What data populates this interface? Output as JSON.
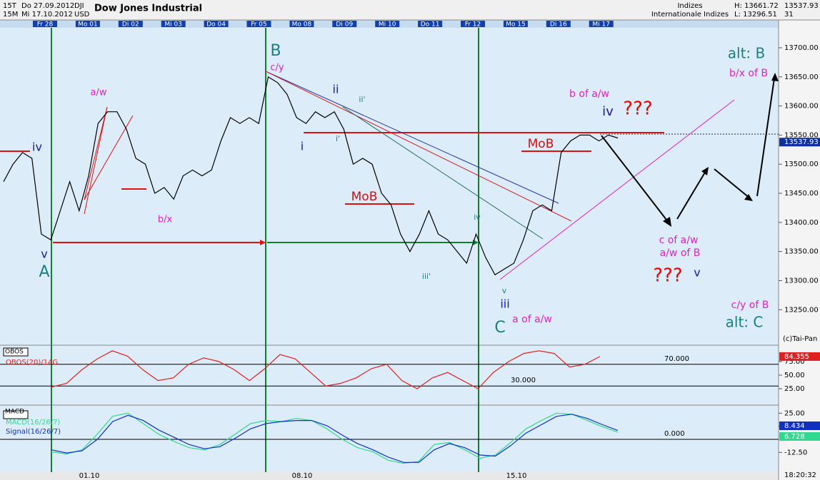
{
  "header": {
    "period": "15T",
    "interval": "15M",
    "from": "Do 27.09.2012",
    "to": "Mi 17.10.2012",
    "symbol": "DJI",
    "currency": "USD",
    "name": "Dow Jones Industrial",
    "category": "Indizes",
    "group": "Internationale Indizes",
    "high": "H: 13661.72",
    "low": "L: 13296.51",
    "count": "31"
  },
  "clock": "18:20:32",
  "copyright": "(c)Tai-Pan",
  "chart_data": [
    {
      "type": "line",
      "name": "Dow Jones Industrial",
      "color": "#000000",
      "day_labels": [
        "Fr 28",
        "Mo 01",
        "Di 02",
        "Mi 03",
        "Do 04",
        "Fr 05",
        "Mo 08",
        "Di 09",
        "Mi 10",
        "Do 11",
        "Fr 12",
        "Mo 15",
        "Di 16",
        "Mi 17"
      ],
      "date_labels": [
        "01.10",
        "08.10",
        "15.10"
      ],
      "values": [
        13470,
        13500,
        13520,
        13510,
        13380,
        13370,
        13420,
        13470,
        13420,
        13480,
        13570,
        13590,
        13590,
        13560,
        13510,
        13500,
        13450,
        13460,
        13440,
        13480,
        13490,
        13480,
        13490,
        13540,
        13580,
        13570,
        13580,
        13570,
        13650,
        13640,
        13620,
        13580,
        13570,
        13590,
        13580,
        13590,
        13560,
        13500,
        13510,
        13500,
        13450,
        13430,
        13380,
        13350,
        13380,
        13420,
        13380,
        13370,
        13350,
        13330,
        13380,
        13340,
        13310,
        13320,
        13330,
        13370,
        13420,
        13430,
        13420,
        13520,
        13540,
        13550,
        13550,
        13540,
        13550,
        13545
      ],
      "ylim": [
        13194,
        13733
      ],
      "yticks": [
        {
          "value": 13700,
          "label": "13700.00"
        },
        {
          "value": 13650,
          "label": "13650.00"
        },
        {
          "value": 13600,
          "label": "13600.00"
        },
        {
          "value": 13550,
          "label": "13550.00"
        },
        {
          "value": 13500,
          "label": "13500.00"
        },
        {
          "value": 13450,
          "label": "13450.00"
        },
        {
          "value": 13400,
          "label": "13400.00"
        },
        {
          "value": 13350,
          "label": "13350.00"
        },
        {
          "value": 13300,
          "label": "13300.00"
        },
        {
          "value": 13250,
          "label": "13250.00"
        }
      ],
      "last_value": 13537.93,
      "annotations": [
        {
          "text": "iv",
          "color": "#1a1aa0"
        },
        {
          "text": "v",
          "color": "#1a1aa0"
        },
        {
          "text": "A",
          "color": "#1a8080"
        },
        {
          "text": "a/w",
          "color": "#e020c0"
        },
        {
          "text": "b/x",
          "color": "#e020c0"
        },
        {
          "text": "B",
          "color": "#1a8080"
        },
        {
          "text": "c/y",
          "color": "#e020c0"
        },
        {
          "text": "ii",
          "color": "#1a1aa0"
        },
        {
          "text": "i",
          "color": "#1a1aa0"
        },
        {
          "text": "ii'",
          "color": "#1a8080"
        },
        {
          "text": "i'",
          "color": "#1a8080"
        },
        {
          "text": "MoB",
          "color": "#d01010"
        },
        {
          "text": "MoB",
          "color": "#d01010"
        },
        {
          "text": "iii'",
          "color": "#1a8080"
        },
        {
          "text": "iv",
          "color": "#1a8080"
        },
        {
          "text": "v",
          "color": "#1a8080"
        },
        {
          "text": "iii",
          "color": "#1a1aa0"
        },
        {
          "text": "C",
          "color": "#1a8080"
        },
        {
          "text": "a of a/w",
          "color": "#e020c0"
        },
        {
          "text": "b of a/w",
          "color": "#e020c0"
        },
        {
          "text": "iv",
          "color": "#1a1aa0"
        },
        {
          "text": "???",
          "color": "#ee0000"
        },
        {
          "text": "alt: B",
          "color": "#1a8080"
        },
        {
          "text": "b/x of B",
          "color": "#e020c0"
        },
        {
          "text": "c of a/w",
          "color": "#e020c0"
        },
        {
          "text": "a/w of B",
          "color": "#e020c0"
        },
        {
          "text": "???",
          "color": "#ee0000"
        },
        {
          "text": "v",
          "color": "#1a1aa0"
        },
        {
          "text": "c/y of B",
          "color": "#e020c0"
        },
        {
          "text": "alt: C",
          "color": "#1a8080"
        }
      ]
    },
    {
      "type": "line",
      "title": "OBOS",
      "series": [
        {
          "name": "OBOS(20)/14G",
          "color": "#e02020",
          "values": [
            28,
            35,
            60,
            80,
            95,
            85,
            60,
            40,
            45,
            70,
            82,
            75,
            60,
            40,
            62,
            88,
            80,
            55,
            30,
            35,
            45,
            62,
            70,
            40,
            25,
            45,
            55,
            40,
            25,
            55,
            75,
            90,
            95,
            90,
            65,
            70,
            84.355
          ]
        }
      ],
      "ylim": [
        0,
        100
      ],
      "yticks": [
        {
          "value": 75,
          "label": "75.00"
        },
        {
          "value": 50,
          "label": "50.00"
        },
        {
          "value": 25,
          "label": "25.00"
        }
      ],
      "levels": [
        {
          "value": 70,
          "label": "70.000"
        },
        {
          "value": 30,
          "label": "30.000"
        }
      ]
    },
    {
      "type": "line",
      "title": "MACD",
      "series": [
        {
          "name": "MACD(16/26/7)",
          "color": "#30d890",
          "values": [
            -12,
            -14,
            -10,
            5,
            22,
            25,
            15,
            5,
            -2,
            -8,
            -10,
            -5,
            5,
            15,
            18,
            17,
            20,
            18,
            10,
            0,
            -8,
            -12,
            -20,
            -23,
            -21,
            -5,
            -3,
            -10,
            -18,
            -15,
            -3,
            10,
            18,
            25,
            24,
            18,
            12,
            6.728
          ]
        },
        {
          "name": "Signal(16/26/7)",
          "color": "#1030c0",
          "values": [
            -10,
            -13,
            -11,
            0,
            17,
            23,
            18,
            9,
            2,
            -5,
            -9,
            -7,
            1,
            10,
            15,
            17,
            18,
            18,
            13,
            4,
            -4,
            -10,
            -17,
            -22,
            -22,
            -10,
            -4,
            -8,
            -15,
            -16,
            -6,
            6,
            14,
            22,
            24,
            20,
            14,
            8.434
          ]
        }
      ],
      "ylim": [
        -30,
        30
      ],
      "yticks": [
        {
          "value": 25,
          "label": "25.00"
        },
        {
          "value": 12.5,
          "label": "12.50"
        },
        {
          "value": -12.5,
          "label": "-12.50"
        }
      ],
      "levels": [
        {
          "value": 0,
          "label": "0.000"
        }
      ]
    }
  ]
}
